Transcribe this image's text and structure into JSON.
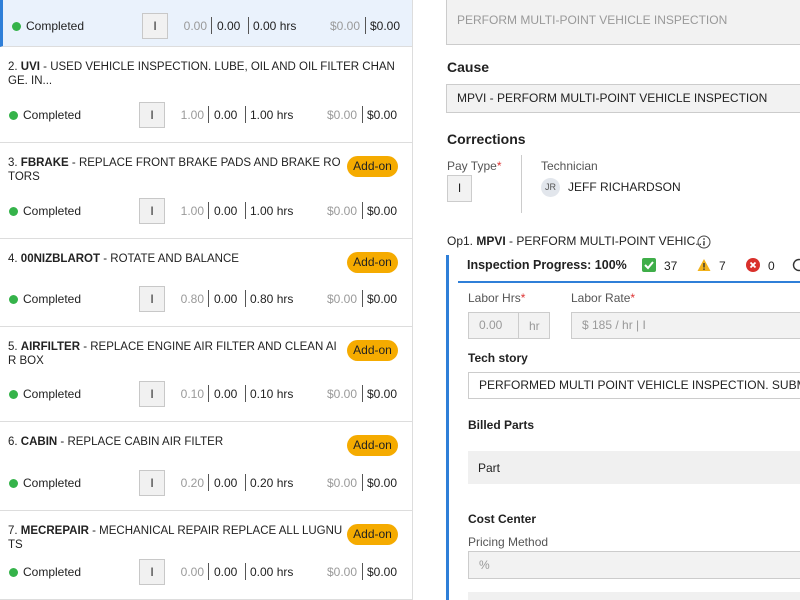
{
  "work_list": {
    "items": [
      {
        "status": "Completed",
        "pay_type": "I",
        "hours": [
          "0.00",
          "0.00",
          "0.00 hrs"
        ],
        "amounts": [
          "$0.00",
          "$0.00"
        ]
      },
      {
        "number": "2.",
        "code": "UVI",
        "description": "- USED VEHICLE INSPECTION. LUBE, OIL AND OIL FILTER CHANGE. IN...",
        "status": "Completed",
        "pay_type": "I",
        "hours": [
          "1.00",
          "0.00",
          "1.00 hrs"
        ],
        "amounts": [
          "$0.00",
          "$0.00"
        ]
      },
      {
        "number": "3.",
        "code": "FBRAKE",
        "description": "- REPLACE FRONT BRAKE PADS AND BRAKE ROTORS",
        "tag": "Add-on",
        "status": "Completed",
        "pay_type": "I",
        "hours": [
          "1.00",
          "0.00",
          "1.00 hrs"
        ],
        "amounts": [
          "$0.00",
          "$0.00"
        ]
      },
      {
        "number": "4.",
        "code": "00NIZBLAROT",
        "description": "- ROTATE AND BALANCE",
        "tag": "Add-on",
        "status": "Completed",
        "pay_type": "I",
        "hours": [
          "0.80",
          "0.00",
          "0.80 hrs"
        ],
        "amounts": [
          "$0.00",
          "$0.00"
        ]
      },
      {
        "number": "5.",
        "code": "AIRFILTER",
        "description": "- REPLACE ENGINE AIR FILTER AND CLEAN AIR BOX",
        "tag": "Add-on",
        "status": "Completed",
        "pay_type": "I",
        "hours": [
          "0.10",
          "0.00",
          "0.10 hrs"
        ],
        "amounts": [
          "$0.00",
          "$0.00"
        ]
      },
      {
        "number": "6.",
        "code": "CABIN",
        "description": "- REPLACE CABIN AIR FILTER",
        "tag": "Add-on",
        "status": "Completed",
        "pay_type": "I",
        "hours": [
          "0.20",
          "0.00",
          "0.20 hrs"
        ],
        "amounts": [
          "$0.00",
          "$0.00"
        ]
      },
      {
        "number": "7.",
        "code": "MECREPAIR",
        "description": "- MECHANICAL REPAIR REPLACE ALL LUGNUTS",
        "tag": "Add-on",
        "status": "Completed",
        "pay_type": "I",
        "hours": [
          "0.00",
          "0.00",
          "0.00 hrs"
        ],
        "amounts": [
          "$0.00",
          "$0.00"
        ]
      }
    ]
  },
  "detail": {
    "concern": "PERFORM MULTI-POINT VEHICLE INSPECTION",
    "cause_label": "Cause",
    "cause": "MPVI - PERFORM MULTI-POINT VEHICLE INSPECTION",
    "corrections_label": "Corrections",
    "required_mark": "*",
    "pay_type_label": "Pay Type",
    "pay_type": "I",
    "technician_label": "Technician",
    "technician_initials": "JR",
    "technician": "JEFF RICHARDSON",
    "op": {
      "label": "Op1.",
      "code": "MPVI",
      "description": "- PERFORM MULTI-POINT VEHIC..."
    },
    "inspection": {
      "label": "Inspection Progress: 100%",
      "ok": "37",
      "warn": "7",
      "fail": "0"
    },
    "labor_hrs_label": "Labor Hrs",
    "labor_hrs": "0.00",
    "labor_hrs_unit": "hr",
    "labor_rate_label": "Labor Rate",
    "labor_rate": "$ 185 / hr | I",
    "tech_story_label": "Tech story",
    "tech_story": "PERFORMED MULTI POINT VEHICLE INSPECTION. SUBMITTED",
    "billed_parts_label": "Billed Parts",
    "part_header": "Part",
    "cost_center_label": "Cost Center",
    "pricing_method_label": "Pricing Method",
    "pricing_method": "%"
  }
}
